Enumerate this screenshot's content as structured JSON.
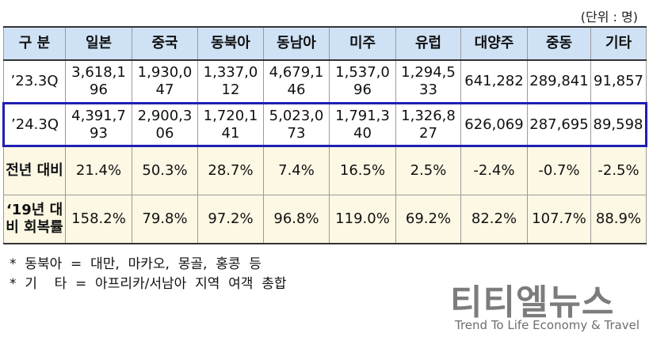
{
  "unit_label": "(단위 : 명)",
  "table": {
    "headers": [
      "구 분",
      "일본",
      "중국",
      "동북아",
      "동남아",
      "미주",
      "유럽",
      "대양주",
      "중동",
      "기타"
    ],
    "rows": [
      {
        "label": "’23.3Q",
        "values": [
          "3,618,196",
          "1,930,047",
          "1,337,012",
          "4,679,146",
          "1,537,096",
          "1,294,533",
          "641,282",
          "289,841",
          "91,857"
        ]
      },
      {
        "label": "’24.3Q",
        "values": [
          "4,391,793",
          "2,900,306",
          "1,720,141",
          "5,023,073",
          "1,791,340",
          "1,326,827",
          "626,069",
          "287,695",
          "89,598"
        ]
      },
      {
        "label": "전년 대비",
        "values": [
          "21.4%",
          "50.3%",
          "28.7%",
          "7.4%",
          "16.5%",
          "2.5%",
          "-2.4%",
          "-0.7%",
          "-2.5%"
        ]
      },
      {
        "label": "‘19년 대비 회복률",
        "values": [
          "158.2%",
          "79.8%",
          "97.2%",
          "96.8%",
          "119.0%",
          "69.2%",
          "82.2%",
          "107.7%",
          "88.9%"
        ]
      }
    ]
  },
  "notes": [
    "*  동북아  =  대만,  마카오,  몽골,  홍콩  등",
    "*  기    타  =  아프리카/서남아  지역  여객  총합"
  ],
  "logo": {
    "name": "티티엘뉴스",
    "tagline": "Trend To Life Economy & Travel"
  },
  "colors": {
    "header_bg": "#cfe2f5",
    "pct_row_bg": "#fdf8e4",
    "highlight_border": "#1f1fb4"
  }
}
